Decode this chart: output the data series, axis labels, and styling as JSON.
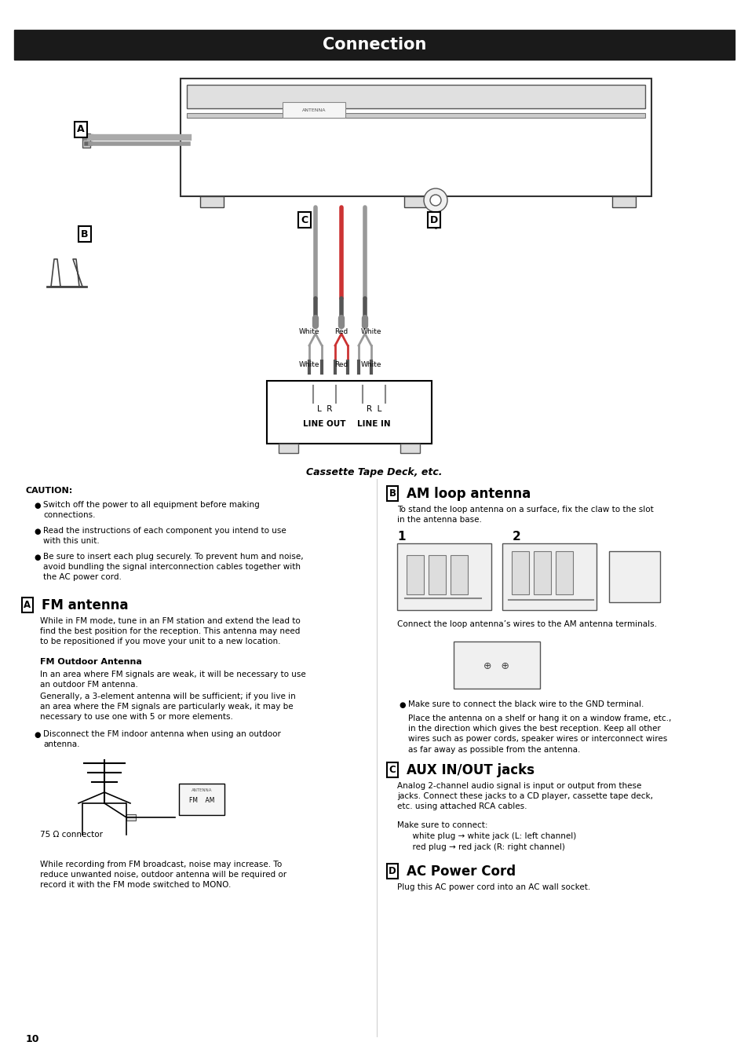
{
  "title": "Connection",
  "title_bg": "#1a1a1a",
  "title_color": "#ffffff",
  "title_fontsize": 15,
  "page_bg": "#ffffff",
  "page_number": "10",
  "caption": "Cassette Tape Deck, etc.",
  "caution_title": "CAUTION:",
  "caution_bullets": [
    "Switch off the power to all equipment before making\nconnections.",
    "Read the instructions of each component you intend to use\nwith this unit.",
    "Be sure to insert each plug securely. To prevent hum and noise,\navoid bundling the signal interconnection cables together with\nthe AC power cord."
  ],
  "section_A_label": "A",
  "section_A_title": "FM antenna",
  "section_A_body": "While in FM mode, tune in an FM station and extend the lead to\nfind the best position for the reception. This antenna may need\nto be repositioned if you move your unit to a new location.",
  "section_A_sub_title": "FM Outdoor Antenna",
  "section_A_sub_body1": "In an area where FM signals are weak, it will be necessary to use\nan outdoor FM antenna.",
  "section_A_sub_body2": "Generally, a 3-element antenna will be sufficient; if you live in\nan area where the FM signals are particularly weak, it may be\nnecessary to use one with 5 or more elements.",
  "section_A_bullet": "Disconnect the FM indoor antenna when using an outdoor\nantenna.",
  "section_A_footer": "75 Ω connector",
  "section_A_footer2": "While recording from FM broadcast, noise may increase. To\nreduce unwanted noise, outdoor antenna will be required or\nrecord it with the FM mode switched to MONO.",
  "section_B_label": "B",
  "section_B_title": "AM loop antenna",
  "section_B_body": "To stand the loop antenna on a surface, fix the claw to the slot\nin the antenna base.",
  "section_B_body2": "Connect the loop antenna’s wires to the AM antenna terminals.",
  "section_B_bullet": "Make sure to connect the black wire to the GND terminal.",
  "section_B_body3": "Place the antenna on a shelf or hang it on a window frame, etc.,\nin the direction which gives the best reception. Keep all other\nwires such as power cords, speaker wires or interconnect wires\nas far away as possible from the antenna.",
  "section_C_label": "C",
  "section_C_title": "AUX IN/OUT jacks",
  "section_C_body": "Analog 2-channel audio signal is input or output from these\njacks. Connect these jacks to a CD player, cassette tape deck,\netc. using attached RCA cables.",
  "section_C_body2": "Make sure to connect:\n      white plug → white jack (L: left channel)\n      red plug → red jack (R: right channel)",
  "section_D_label": "D",
  "section_D_title": "AC Power Cord",
  "section_D_body": "Plug this AC power cord into an AC wall socket."
}
